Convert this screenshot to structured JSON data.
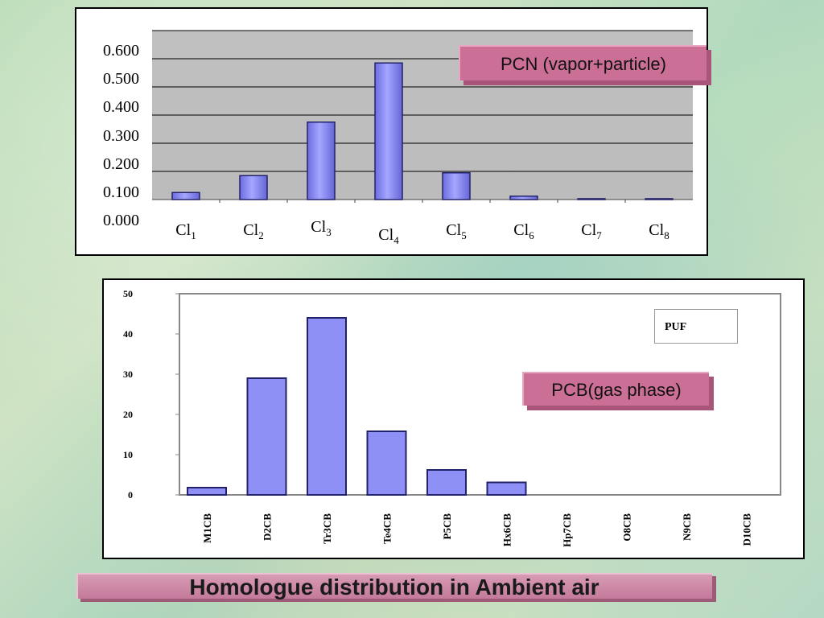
{
  "title": "Homologue distribution in Ambient air",
  "colors": {
    "bar_fill": "#8f90f5",
    "bar_edge": "#22226a",
    "plot_bg_top": "#c0c0c0",
    "callout": "#cc6f96"
  },
  "chart_data": [
    {
      "type": "bar",
      "annotation": "PCN (vapor+particle)",
      "categories": [
        {
          "base": "Cl",
          "sub": "1"
        },
        {
          "base": "Cl",
          "sub": "2"
        },
        {
          "base": "Cl",
          "sub": "3"
        },
        {
          "base": "Cl",
          "sub": "4"
        },
        {
          "base": "Cl",
          "sub": "5"
        },
        {
          "base": "Cl",
          "sub": "6"
        },
        {
          "base": "Cl",
          "sub": "7"
        },
        {
          "base": "Cl",
          "sub": "8"
        }
      ],
      "values": [
        0.025,
        0.085,
        0.275,
        0.485,
        0.095,
        0.012,
        0.003,
        0.003
      ],
      "yticks": [
        "0.000",
        "0.100",
        "0.200",
        "0.300",
        "0.400",
        "0.500",
        "0.600"
      ],
      "ylim": [
        0,
        0.6
      ],
      "grid": true
    },
    {
      "type": "bar",
      "annotation": "PCB(gas phase)",
      "legend": "PUF",
      "categories": [
        "M1CB",
        "D2CB",
        "Tr3CB",
        "Te4CB",
        "P5CB",
        "Hx6CB",
        "Hp7CB",
        "O8CB",
        "N9CB",
        "D10CB"
      ],
      "values": [
        1.8,
        29,
        44,
        15.8,
        6.2,
        3.1,
        0,
        0,
        0,
        0
      ],
      "yticks": [
        "0",
        "10",
        "20",
        "30",
        "40",
        "50"
      ],
      "ylim": [
        0,
        50
      ],
      "grid": false
    }
  ]
}
